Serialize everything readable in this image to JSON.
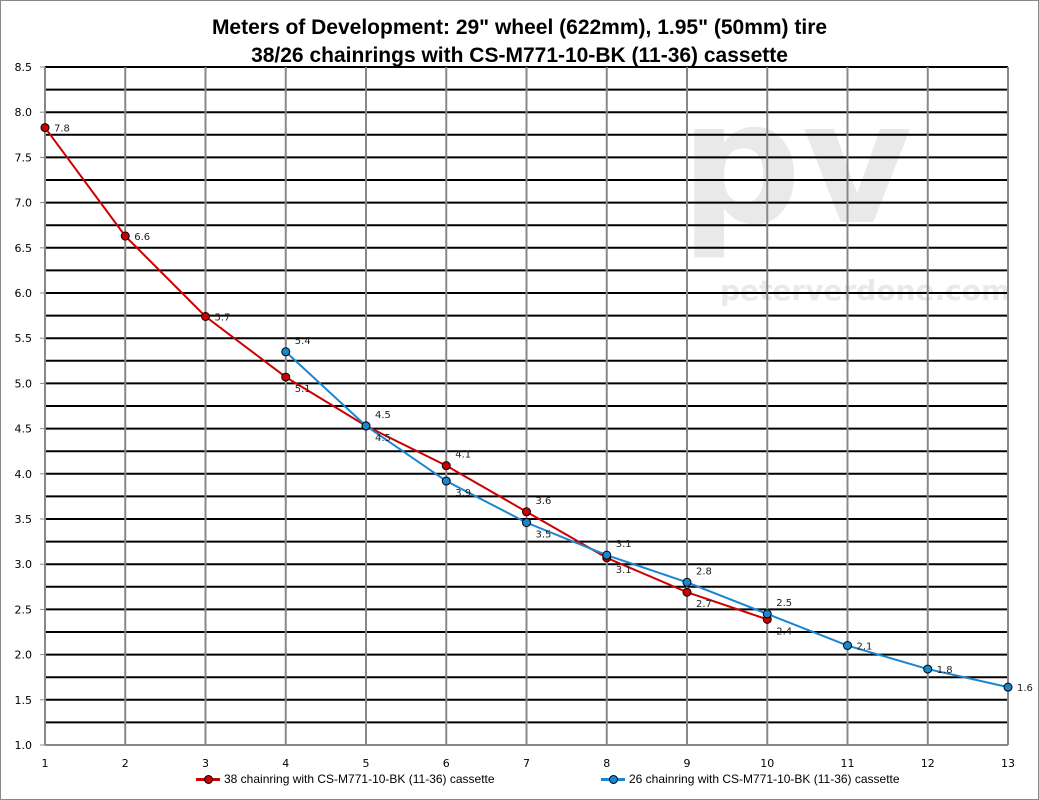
{
  "chart_data": {
    "type": "line",
    "title": "Meters of Development: 29\" wheel (622mm), 1.95\" (50mm) tire",
    "subtitle": "38/26 chainrings with CS-M771-10-BK (11-36) cassette",
    "xlabel": "",
    "ylabel": "",
    "xlim": [
      1,
      13
    ],
    "ylim": [
      1.0,
      8.5
    ],
    "x_ticks": [
      "1",
      "2",
      "3",
      "4",
      "5",
      "6",
      "7",
      "8",
      "9",
      "10",
      "11",
      "12",
      "13"
    ],
    "y_ticks": [
      "1.0",
      "1.5",
      "2.0",
      "2.5",
      "3.0",
      "3.5",
      "4.0",
      "4.5",
      "5.0",
      "5.5",
      "6.0",
      "6.5",
      "7.0",
      "7.5",
      "8.0",
      "8.5"
    ],
    "grid": {
      "horizontal_step": 0.25,
      "vertical": true
    },
    "legend_position": "bottom",
    "watermark": "pv peterverdone.com",
    "series": [
      {
        "name": "38 chainring with CS-M771-10-BK (11-36) cassette",
        "color": "#cc0000",
        "x": [
          1,
          2,
          3,
          4,
          5,
          6,
          7,
          8,
          9,
          10
        ],
        "values": [
          7.83,
          6.63,
          5.74,
          5.07,
          4.53,
          4.09,
          3.58,
          3.07,
          2.69,
          2.39
        ],
        "labels": [
          "7.8",
          "6.6",
          "5.7",
          "5.1",
          "4.5",
          "4.1",
          "3.6",
          "3.1",
          "2.7",
          "2.4"
        ]
      },
      {
        "name": "26 chainring with CS-M771-10-BK (11-36) cassette",
        "color": "#1a86d0",
        "x": [
          4,
          5,
          6,
          7,
          8,
          9,
          10,
          11,
          12,
          13
        ],
        "values": [
          5.35,
          4.53,
          3.92,
          3.46,
          3.1,
          2.8,
          2.45,
          2.1,
          1.84,
          1.64
        ],
        "labels": [
          "5.4",
          "4.5",
          "3.9",
          "3.5",
          "3.1",
          "2.8",
          "2.5",
          "2.1",
          "1.8",
          "1.6"
        ]
      }
    ]
  }
}
